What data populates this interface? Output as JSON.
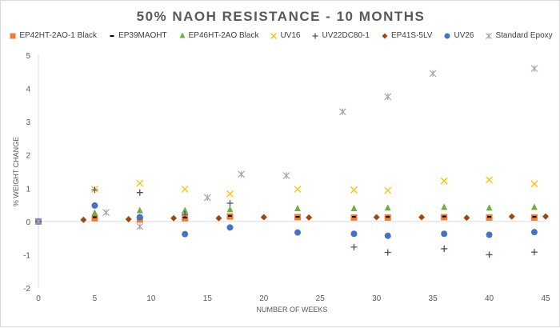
{
  "chart_data": {
    "type": "scatter",
    "title": "50% NAOH RESISTANCE - 10 MONTHS",
    "xlabel": "NUMBER OF WEEKS",
    "ylabel": "% WEIGHT CHANGE",
    "xlim": [
      0,
      45
    ],
    "ylim": [
      -2,
      5
    ],
    "xticks": [
      0,
      5,
      10,
      15,
      20,
      25,
      30,
      35,
      40,
      45
    ],
    "yticks": [
      -2,
      -1,
      0,
      1,
      2,
      3,
      4,
      5
    ],
    "legend_position": "top",
    "series": [
      {
        "name": "EP42HT-2AO-1 Black",
        "marker": "square",
        "color": "#ed7d31",
        "x": [
          0,
          5,
          9,
          13,
          17,
          23,
          28,
          31,
          36,
          40,
          44
        ],
        "y": [
          0,
          0.1,
          0.06,
          0.1,
          0.15,
          0.13,
          0.12,
          0.12,
          0.13,
          0.12,
          0.12
        ]
      },
      {
        "name": "EP39MAOHT",
        "marker": "dash",
        "color": "#000000",
        "x": [
          0,
          5,
          9,
          13,
          17,
          23,
          28,
          31,
          36,
          40,
          44
        ],
        "y": [
          0,
          0.13,
          0.08,
          0.12,
          0.17,
          0.14,
          0.14,
          0.14,
          0.15,
          0.14,
          0.14
        ]
      },
      {
        "name": "EP46HT-2AO Black",
        "marker": "triangle",
        "color": "#70ad47",
        "x": [
          5,
          9,
          13,
          17,
          23,
          28,
          31,
          36,
          40,
          44
        ],
        "y": [
          0.25,
          0.32,
          0.32,
          0.35,
          0.38,
          0.38,
          0.4,
          0.42,
          0.4,
          0.42
        ]
      },
      {
        "name": "UV16",
        "marker": "x",
        "color": "#ffc000",
        "x": [
          5,
          9,
          13,
          17,
          23,
          28,
          31,
          36,
          40,
          44
        ],
        "y": [
          0.97,
          1.15,
          0.97,
          0.83,
          0.97,
          0.95,
          0.93,
          1.22,
          1.25,
          1.13
        ]
      },
      {
        "name": "UV22DC80-1",
        "marker": "plus",
        "color": "#44546a",
        "x": [
          0,
          5,
          9,
          13,
          17,
          28,
          31,
          36,
          40,
          44
        ],
        "y": [
          0,
          0.95,
          0.87,
          0.22,
          0.55,
          -0.77,
          -0.93,
          -0.82,
          -1.0,
          -0.92
        ]
      },
      {
        "name": "EP41S-5LV",
        "marker": "diamond",
        "color": "#9e480e",
        "x": [
          4,
          8,
          12,
          16,
          20,
          24,
          30,
          34,
          38,
          42,
          45
        ],
        "y": [
          0.05,
          0.07,
          0.1,
          0.1,
          0.13,
          0.12,
          0.13,
          0.13,
          0.11,
          0.15,
          0.15
        ]
      },
      {
        "name": "UV26",
        "marker": "circle",
        "color": "#4472c4",
        "x": [
          0,
          5,
          9,
          13,
          17,
          23,
          28,
          31,
          36,
          40,
          44
        ],
        "y": [
          0,
          0.48,
          0.13,
          -0.38,
          -0.18,
          -0.33,
          -0.37,
          -0.43,
          -0.37,
          -0.4,
          -0.32
        ]
      },
      {
        "name": "Standard Epoxy",
        "marker": "asterisk",
        "color": "#a5a5a5",
        "x": [
          0,
          6,
          9,
          15,
          18,
          22,
          27,
          31,
          35,
          44
        ],
        "y": [
          0,
          0.27,
          -0.15,
          0.72,
          1.42,
          1.38,
          3.3,
          3.75,
          4.45,
          4.6
        ]
      }
    ]
  }
}
